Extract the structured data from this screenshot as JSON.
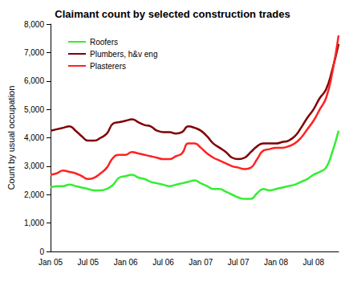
{
  "chart_data": {
    "type": "line",
    "title": "Claimant count by selected construction trades",
    "y_label": "Count by usual occupation",
    "categories": [
      "Jan 05",
      null,
      null,
      null,
      null,
      null,
      "Jul 05",
      null,
      null,
      null,
      null,
      null,
      "Jan 06",
      null,
      null,
      null,
      null,
      null,
      "Jul 06",
      null,
      null,
      null,
      null,
      null,
      "Jan 07",
      null,
      null,
      null,
      null,
      null,
      "Jul 07",
      null,
      null,
      null,
      null,
      null,
      "Jan 08",
      null,
      null,
      null,
      null,
      null,
      "Jul 08",
      null,
      null,
      null,
      null
    ],
    "series": [
      {
        "name": "Roofers",
        "color": "#33ee33",
        "values": [
          2250,
          2300,
          2300,
          2350,
          2300,
          2250,
          2200,
          2150,
          2150,
          2200,
          2350,
          2600,
          2650,
          2700,
          2600,
          2550,
          2450,
          2400,
          2350,
          2300,
          2350,
          2400,
          2450,
          2500,
          2400,
          2300,
          2200,
          2200,
          2100,
          2000,
          1900,
          1850,
          1850,
          2050,
          2200,
          2150,
          2200,
          2250,
          2300,
          2350,
          2450,
          2550,
          2700,
          2800,
          2950,
          3500,
          4250
        ]
      },
      {
        "name": "Plumbers, h&v eng",
        "color": "#800000",
        "values": [
          4250,
          4300,
          4350,
          4400,
          4250,
          4050,
          3900,
          3900,
          4000,
          4150,
          4500,
          4550,
          4600,
          4650,
          4550,
          4450,
          4400,
          4250,
          4200,
          4200,
          4150,
          4200,
          4400,
          4350,
          4250,
          4050,
          3800,
          3650,
          3500,
          3300,
          3250,
          3300,
          3500,
          3700,
          3800,
          3800,
          3800,
          3850,
          3900,
          4050,
          4350,
          4700,
          5000,
          5400,
          5700,
          6400,
          7300
        ]
      },
      {
        "name": "Plasterers",
        "color": "#ff2222",
        "values": [
          2700,
          2750,
          2850,
          2800,
          2750,
          2650,
          2550,
          2600,
          2750,
          2950,
          3300,
          3400,
          3400,
          3500,
          3450,
          3400,
          3350,
          3300,
          3250,
          3250,
          3350,
          3450,
          3800,
          3800,
          3650,
          3450,
          3300,
          3200,
          3100,
          3000,
          2950,
          2900,
          2950,
          3250,
          3550,
          3600,
          3650,
          3650,
          3700,
          3800,
          4000,
          4300,
          4600,
          5000,
          5400,
          6300,
          7600
        ]
      }
    ],
    "ylim": [
      0,
      8000
    ],
    "yticks": [
      0,
      {
        "value": 1000,
        "label": "1,000"
      },
      {
        "value": 2000,
        "label": "2,000"
      },
      {
        "value": 3000,
        "label": "3,000"
      },
      {
        "value": 4000,
        "label": "4,000"
      },
      {
        "value": 5000,
        "label": "5,000"
      },
      {
        "value": 6000,
        "label": "6,000"
      },
      {
        "value": 7000,
        "label": "7,000"
      },
      {
        "value": 8000,
        "label": "8,000"
      }
    ],
    "grid": false,
    "legend": "top-left"
  }
}
